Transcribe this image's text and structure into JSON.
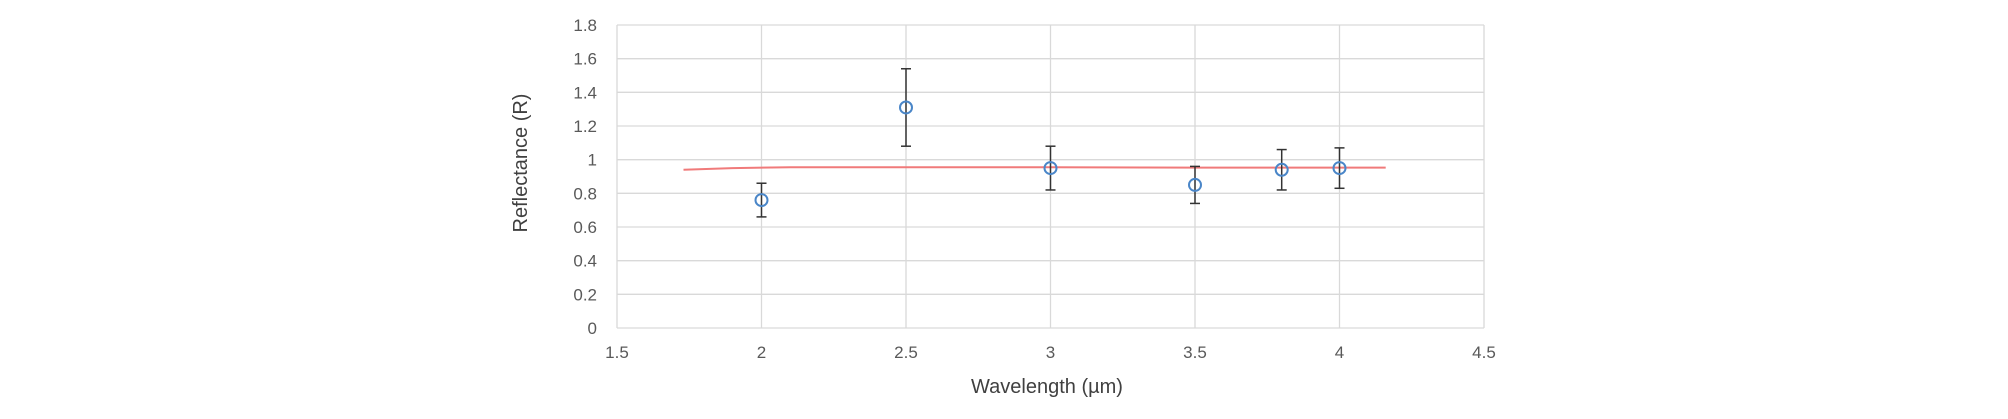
{
  "chart_data": {
    "type": "scatter",
    "xlabel": "Wavelength (µm)",
    "ylabel": "Reflectance (R)",
    "xlim": [
      1.5,
      4.5
    ],
    "ylim": [
      0,
      1.8
    ],
    "x_ticks": [
      "1.5",
      "2",
      "2.5",
      "3",
      "3.5",
      "4",
      "4.5"
    ],
    "y_ticks": [
      "0",
      "0.2",
      "0.4",
      "0.6",
      "0.8",
      "1",
      "1.2",
      "1.4",
      "1.6",
      "1.8"
    ],
    "grid": true,
    "series": [
      {
        "kind": "points-with-error-bars",
        "color": "#4a86c8",
        "marker": "open-circle",
        "points": [
          {
            "x": 2.0,
            "y": 0.76,
            "err": 0.1
          },
          {
            "x": 2.5,
            "y": 1.31,
            "err": 0.23
          },
          {
            "x": 3.0,
            "y": 0.95,
            "err": 0.13
          },
          {
            "x": 3.5,
            "y": 0.85,
            "err": 0.11
          },
          {
            "x": 3.8,
            "y": 0.94,
            "err": 0.12
          },
          {
            "x": 4.0,
            "y": 0.95,
            "err": 0.12
          }
        ]
      },
      {
        "kind": "line",
        "color": "#f07a7a",
        "x": [
          1.73,
          1.9,
          2.1,
          2.5,
          3.0,
          3.5,
          4.0,
          4.16
        ],
        "y": [
          0.94,
          0.95,
          0.955,
          0.955,
          0.955,
          0.953,
          0.953,
          0.953
        ]
      }
    ],
    "colors": {
      "grid": "#d9d9d9",
      "error_bar": "#333333"
    }
  }
}
